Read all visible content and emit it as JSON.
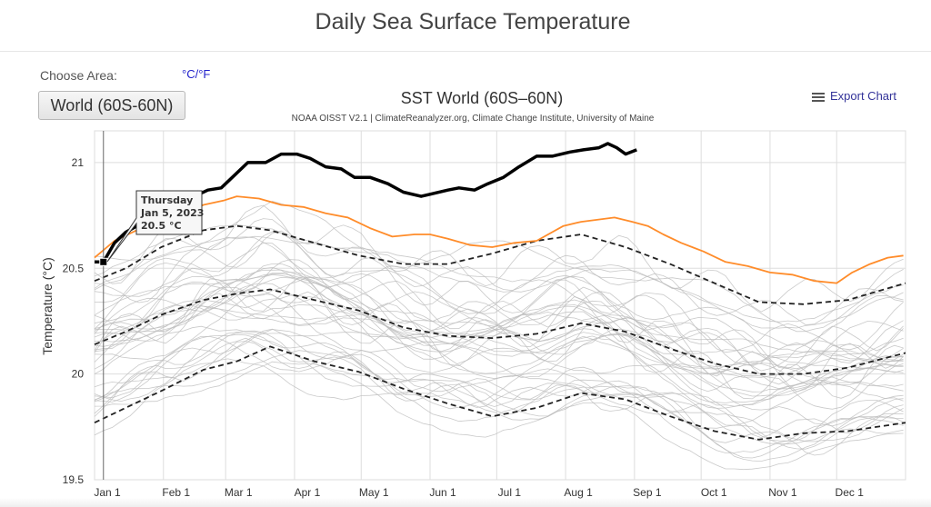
{
  "page": {
    "title": "Daily Sea Surface Temperature",
    "choose_area_label": "Choose Area:",
    "units_toggle": "°C/°F",
    "area_button": "World (60S-60N)",
    "export_label": "Export Chart"
  },
  "tooltip": {
    "day": "Thursday",
    "date": "Jan 5, 2023",
    "value": "20.5 °C"
  },
  "colors": {
    "current_year": "#000000",
    "previous_year": "#ff8c2a",
    "climatology": "#222222",
    "other_years": "#bcbcbc",
    "grid": "#dddddd"
  },
  "chart_data": {
    "type": "line",
    "title": "SST World (60S–60N)",
    "subtitle": "NOAA OISST V2.1 | ClimateReanalyzer.org, Climate Change Institute, University of Maine",
    "xlabel": "",
    "ylabel": "Temperature (°C)",
    "x_ticks": [
      "Jan 1",
      "Feb 1",
      "Mar 1",
      "Apr 1",
      "May 1",
      "Jun 1",
      "Jul 1",
      "Aug 1",
      "Sep 1",
      "Oct 1",
      "Nov 1",
      "Dec 1"
    ],
    "y_ticks": [
      19.5,
      20,
      20.5,
      21
    ],
    "ylim": [
      19.5,
      21.15
    ],
    "xlim_day": [
      1,
      366
    ],
    "grid": true,
    "highlight_day": 5,
    "series": [
      {
        "key": "current",
        "style": "solid-thick",
        "color": "#000000",
        "x": [
          1,
          5,
          10,
          15,
          20,
          25,
          31,
          40,
          46,
          52,
          58,
          63,
          70,
          78,
          85,
          92,
          98,
          105,
          112,
          118,
          125,
          133,
          140,
          148,
          152,
          160,
          165,
          172,
          178,
          185,
          192,
          200,
          207,
          215,
          221,
          228,
          232,
          236,
          240,
          245
        ],
        "y": [
          20.53,
          20.53,
          20.62,
          20.67,
          20.7,
          20.74,
          20.8,
          20.82,
          20.84,
          20.87,
          20.88,
          20.93,
          21.0,
          21.0,
          21.04,
          21.04,
          21.02,
          20.98,
          20.97,
          20.93,
          20.93,
          20.9,
          20.86,
          20.84,
          20.85,
          20.87,
          20.88,
          20.87,
          20.9,
          20.93,
          20.98,
          21.03,
          21.03,
          21.05,
          21.06,
          21.07,
          21.09,
          21.07,
          21.04,
          21.06
        ]
      },
      {
        "key": "previous",
        "style": "solid",
        "color": "#ff8c2a",
        "x": [
          1,
          10,
          20,
          31,
          40,
          50,
          59,
          65,
          75,
          85,
          95,
          105,
          115,
          125,
          135,
          145,
          152,
          160,
          170,
          180,
          190,
          200,
          212,
          220,
          235,
          243,
          250,
          257,
          265,
          275,
          285,
          295,
          305,
          315,
          325,
          335,
          342,
          350,
          358,
          365
        ],
        "y": [
          20.55,
          20.63,
          20.68,
          20.72,
          20.75,
          20.8,
          20.82,
          20.84,
          20.83,
          20.8,
          20.79,
          20.76,
          20.74,
          20.69,
          20.65,
          20.66,
          20.66,
          20.64,
          20.61,
          20.6,
          20.62,
          20.63,
          20.7,
          20.72,
          20.74,
          20.72,
          20.7,
          20.66,
          20.62,
          20.58,
          20.53,
          20.51,
          20.48,
          20.47,
          20.44,
          20.43,
          20.48,
          20.52,
          20.55,
          20.56
        ]
      },
      {
        "key": "upper-band",
        "style": "dashed",
        "color": "#222222",
        "x": [
          1,
          15,
          31,
          50,
          65,
          80,
          100,
          120,
          140,
          160,
          180,
          200,
          220,
          240,
          260,
          280,
          300,
          320,
          340,
          366
        ],
        "y": [
          20.44,
          20.5,
          20.6,
          20.68,
          20.7,
          20.68,
          20.62,
          20.56,
          20.52,
          20.52,
          20.57,
          20.63,
          20.66,
          20.6,
          20.52,
          20.43,
          20.34,
          20.33,
          20.35,
          20.43
        ]
      },
      {
        "key": "mean",
        "style": "dashed",
        "color": "#222222",
        "x": [
          1,
          15,
          31,
          50,
          65,
          80,
          100,
          120,
          140,
          160,
          180,
          200,
          220,
          240,
          260,
          280,
          300,
          320,
          340,
          366
        ],
        "y": [
          20.14,
          20.2,
          20.28,
          20.35,
          20.38,
          20.4,
          20.35,
          20.3,
          20.22,
          20.18,
          20.17,
          20.19,
          20.24,
          20.2,
          20.12,
          20.05,
          20.0,
          20.0,
          20.03,
          20.1
        ]
      },
      {
        "key": "lower-band",
        "style": "dashed",
        "color": "#222222",
        "x": [
          1,
          15,
          31,
          50,
          65,
          80,
          100,
          120,
          140,
          160,
          180,
          200,
          220,
          240,
          260,
          280,
          300,
          320,
          340,
          366
        ],
        "y": [
          19.77,
          19.84,
          19.92,
          20.02,
          20.06,
          20.13,
          20.06,
          20.01,
          19.93,
          19.86,
          19.8,
          19.84,
          19.91,
          19.88,
          19.8,
          19.73,
          19.69,
          19.72,
          19.73,
          19.77
        ]
      }
    ]
  }
}
